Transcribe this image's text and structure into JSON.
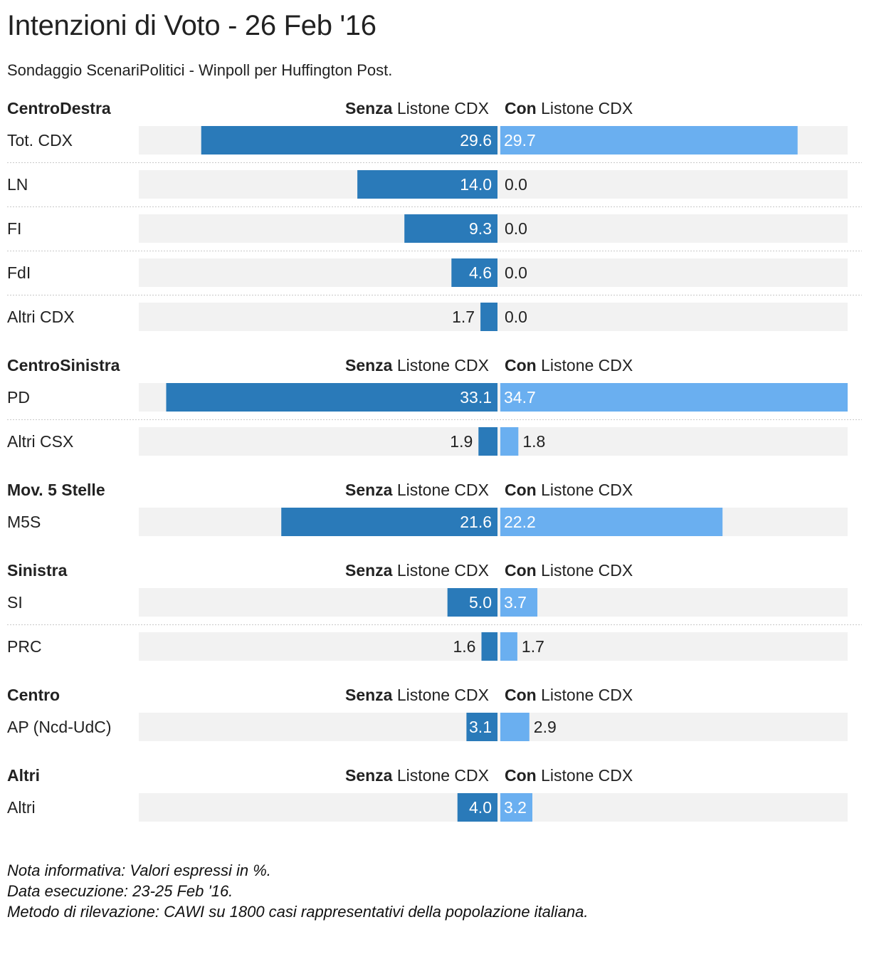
{
  "title": "Intenzioni di Voto - 26 Feb '16",
  "subtitle": "Sondaggio ScenariPolitici - Winpoll per Huffington Post.",
  "notes": [
    "Nota informativa: Valori espressi in %.",
    "Data esecuzione: 23-25 Feb '16.",
    "Metodo di rilevazione: CAWI su 1800 casi rappresentativi della popolazione italiana."
  ],
  "colors": {
    "senza": "#2a7ab9",
    "con": "#6aaff0",
    "track": "#f2f2f2",
    "separator": "#c8c8c8",
    "text": "#222222",
    "label_inside": "#ffffff"
  },
  "chart_data": {
    "type": "bar",
    "orientation": "horizontal-diverging",
    "series": [
      {
        "name_bold": "Senza",
        "name_rest": " Listone CDX",
        "key": "senza"
      },
      {
        "name_bold": "Con",
        "name_rest": " Listone CDX",
        "key": "con"
      }
    ],
    "xlim": [
      0,
      34.7
    ],
    "groups": [
      {
        "name": "CentroDestra",
        "rows": [
          {
            "label": "Tot. CDX",
            "senza": 29.6,
            "con": 29.7,
            "senza_label": "29.6",
            "con_label": "29.7"
          },
          {
            "label": "LN",
            "senza": 14.0,
            "con": 0.0,
            "senza_label": "14.0",
            "con_label": "0.0"
          },
          {
            "label": "FI",
            "senza": 9.3,
            "con": 0.0,
            "senza_label": "9.3",
            "con_label": "0.0"
          },
          {
            "label": "FdI",
            "senza": 4.6,
            "con": 0.0,
            "senza_label": "4.6",
            "con_label": "0.0"
          },
          {
            "label": "Altri CDX",
            "senza": 1.7,
            "con": 0.0,
            "senza_label": "1.7",
            "con_label": "0.0"
          }
        ]
      },
      {
        "name": "CentroSinistra",
        "rows": [
          {
            "label": "PD",
            "senza": 33.1,
            "con": 34.7,
            "senza_label": "33.1",
            "con_label": "34.7"
          },
          {
            "label": "Altri CSX",
            "senza": 1.9,
            "con": 1.8,
            "senza_label": "1.9",
            "con_label": "1.8"
          }
        ]
      },
      {
        "name": "Mov. 5 Stelle",
        "rows": [
          {
            "label": "M5S",
            "senza": 21.6,
            "con": 22.2,
            "senza_label": "21.6",
            "con_label": "22.2"
          }
        ]
      },
      {
        "name": "Sinistra",
        "rows": [
          {
            "label": "SI",
            "senza": 5.0,
            "con": 3.7,
            "senza_label": "5.0",
            "con_label": "3.7"
          },
          {
            "label": "PRC",
            "senza": 1.6,
            "con": 1.7,
            "senza_label": "1.6",
            "con_label": "1.7"
          }
        ]
      },
      {
        "name": "Centro",
        "rows": [
          {
            "label": "AP (Ncd-UdC)",
            "senza": 3.1,
            "con": 2.9,
            "senza_label": "3.1",
            "con_label": "2.9"
          }
        ]
      },
      {
        "name": "Altri",
        "rows": [
          {
            "label": "Altri",
            "senza": 4.0,
            "con": 3.2,
            "senza_label": "4.0",
            "con_label": "3.2"
          }
        ]
      }
    ]
  }
}
